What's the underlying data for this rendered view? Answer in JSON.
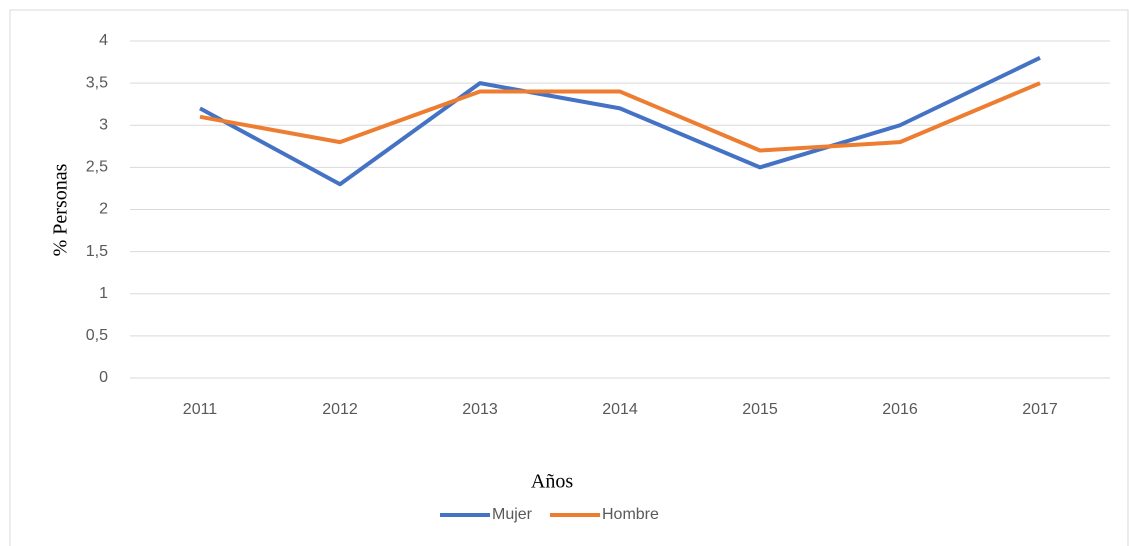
{
  "chart_data": {
    "type": "line",
    "x_label": "Años",
    "y_label": "% Personas",
    "categories": [
      "2011",
      "2012",
      "2013",
      "2014",
      "2015",
      "2016",
      "2017"
    ],
    "series": [
      {
        "name": "Mujer",
        "color": "#4472c4",
        "values": [
          3.2,
          2.3,
          3.5,
          3.2,
          2.5,
          3.0,
          3.8
        ]
      },
      {
        "name": "Hombre",
        "color": "#ed7d31",
        "values": [
          3.1,
          2.8,
          3.4,
          3.4,
          2.7,
          2.8,
          3.5
        ]
      }
    ],
    "ylim": [
      0,
      4
    ],
    "yticks": [
      0,
      {
        "value": 0.5,
        "label": "0,5"
      },
      1,
      {
        "value": 1.5,
        "label": "1,5"
      },
      2,
      {
        "value": 2.5,
        "label": "2,5"
      },
      3,
      {
        "value": 3.5,
        "label": "3,5"
      },
      4
    ],
    "grid": true,
    "legend": "bottom"
  }
}
